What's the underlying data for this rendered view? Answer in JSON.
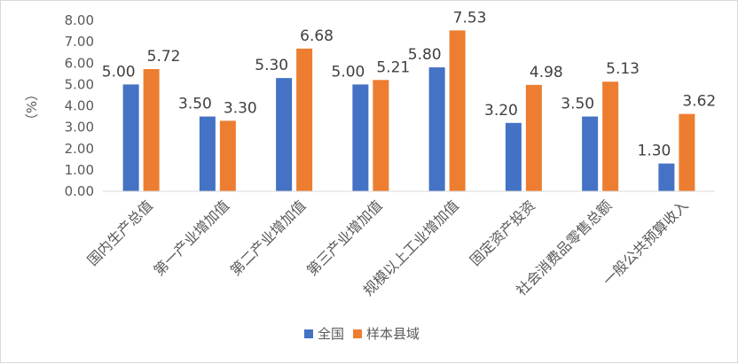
{
  "chart_data": {
    "type": "bar",
    "ylabel": "（%）",
    "ylim": [
      0,
      8
    ],
    "yticks": [
      "0.00",
      "1.00",
      "2.00",
      "3.00",
      "4.00",
      "5.00",
      "6.00",
      "7.00",
      "8.00"
    ],
    "categories": [
      "国内生产总值",
      "第一产业增加值",
      "第二产业增加值",
      "第三产业增加值",
      "规模以上工业增加值",
      "固定资产投资",
      "社会消费品零售总额",
      "一般公共预算收入"
    ],
    "series": [
      {
        "name": "全国",
        "color": "#4472C4",
        "values": [
          5.0,
          3.5,
          5.3,
          5.0,
          5.8,
          3.2,
          3.5,
          1.3
        ],
        "labels": [
          "5.00",
          "3.50",
          "5.30",
          "5.00",
          "5.80",
          "3.20",
          "3.50",
          "1.30"
        ]
      },
      {
        "name": "样本县域",
        "color": "#ED7D31",
        "values": [
          5.72,
          3.3,
          6.68,
          5.21,
          7.53,
          4.98,
          5.13,
          3.62
        ],
        "labels": [
          "5.72",
          "3.30",
          "6.68",
          "5.21",
          "7.53",
          "4.98",
          "5.13",
          "3.62"
        ]
      }
    ],
    "grid": false,
    "legend": "bottom"
  }
}
